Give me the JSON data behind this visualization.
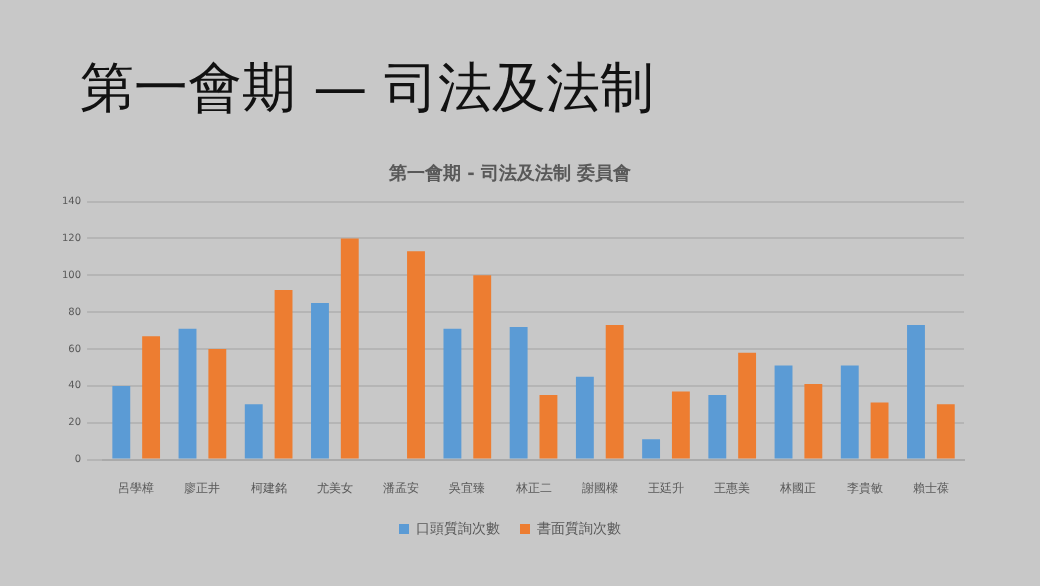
{
  "chart_data": {
    "type": "bar",
    "title": "第一會期 — 司法及法制",
    "subtitle": "第一會期 - 司法及法制 委員會",
    "categories": [
      "呂學樟",
      "廖正井",
      "柯建銘",
      "尤美女",
      "潘孟安",
      "吳宜臻",
      "林正二",
      "謝國樑",
      "王廷升",
      "王惠美",
      "林國正",
      "李貴敏",
      "賴士葆"
    ],
    "series": [
      {
        "name": "口頭質詢次數",
        "color": "#5b9bd5",
        "values": [
          40,
          71,
          30,
          85,
          0,
          71,
          72,
          45,
          11,
          35,
          51,
          51,
          73
        ]
      },
      {
        "name": "書面質詢次數",
        "color": "#ed7d31",
        "values": [
          67,
          60,
          92,
          120,
          113,
          100,
          35,
          73,
          37,
          58,
          41,
          31,
          30
        ]
      }
    ],
    "ylim": [
      0,
      140
    ],
    "yticks": [
      0,
      20,
      40,
      60,
      80,
      100,
      120,
      140
    ],
    "grid": "y",
    "legend": "bottom"
  }
}
